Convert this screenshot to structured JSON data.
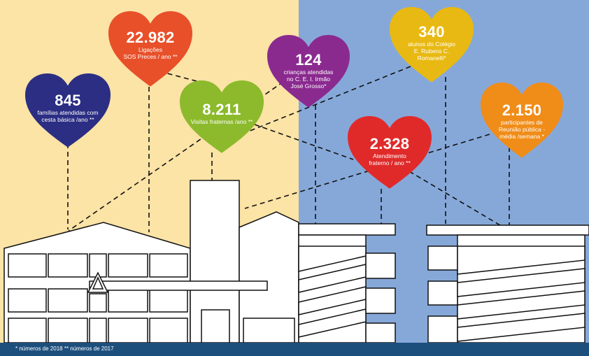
{
  "colors": {
    "left_bg": "#fce3a6",
    "right_bg": "#86a8d9",
    "footer": "#1d4f7d",
    "sos": "#e8502a",
    "familias": "#2b2e83",
    "visitas": "#8cba2c",
    "criancas": "#8a2a8f",
    "atendimento": "#e02a2a",
    "alunos": "#e8b912",
    "reuniao": "#f08c18"
  },
  "hearts": {
    "sos": {
      "value": "22.982",
      "lines": [
        "Ligações",
        "SOS Preces   / ano **"
      ]
    },
    "familias": {
      "value": "845",
      "lines": [
        "famílias atendidas com",
        "cesta básica /ano **"
      ]
    },
    "visitas": {
      "value": "8.211",
      "lines": [
        "Visitas fraternas  /ano **"
      ]
    },
    "criancas": {
      "value": "124",
      "lines": [
        "crianças atendidas",
        "no C. E. I. Irmão",
        "José Grosso*"
      ]
    },
    "alunos": {
      "value": "340",
      "lines": [
        "alunos do Colégio",
        "E. Rubens  C.",
        "Romanelli*"
      ]
    },
    "reuniao": {
      "value": "2.150",
      "lines": [
        "participantes de",
        "Reunião pública -",
        "média /semana *"
      ]
    },
    "atendimento": {
      "value": "2.328",
      "lines": [
        "Atendimento",
        "fraterno / ano **"
      ]
    }
  },
  "footnote": "* números de 2018  ** números de 2017"
}
